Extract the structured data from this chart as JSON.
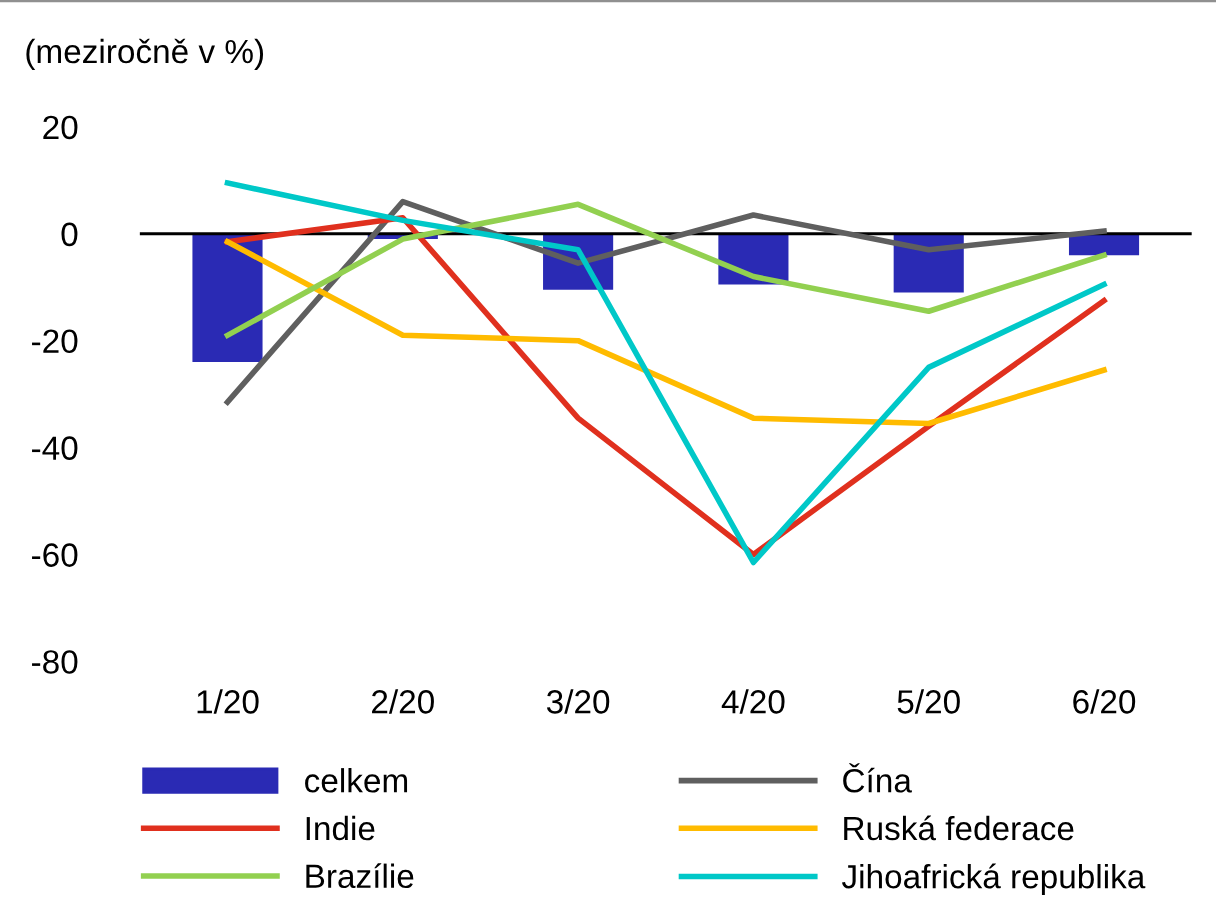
{
  "chart_data": {
    "type": "bar",
    "ylabel": "(meziročně v %)",
    "categories": [
      "1/20",
      "2/20",
      "3/20",
      "4/20",
      "5/20",
      "6/20"
    ],
    "series": [
      {
        "name": "celkem",
        "color": "#2a2ab4",
        "values": [
          -24,
          -1,
          -10.5,
          -9.5,
          -11,
          -4
        ]
      },
      {
        "name": "Čína",
        "type": "line",
        "color": "#5f5f5f",
        "values": [
          -31.5,
          6,
          -5.5,
          3.5,
          -3,
          0.5
        ]
      },
      {
        "name": "Indie",
        "type": "line",
        "color": "#e0301e",
        "values": [
          -1.5,
          3,
          -34.5,
          -60,
          -36,
          -12.5
        ]
      },
      {
        "name": "Ruská federace",
        "type": "line",
        "color": "#ffbb00",
        "values": [
          -1.5,
          -19,
          -20,
          -34.5,
          -35.5,
          -25.5
        ]
      },
      {
        "name": "Brazílie",
        "type": "line",
        "color": "#92d050",
        "values": [
          -19,
          -1,
          5.5,
          -8,
          -14.5,
          -4
        ]
      },
      {
        "name": "Jihoafrická republika",
        "type": "line",
        "color": "#00c8c8",
        "values": [
          9.5,
          2.5,
          -3,
          -61.5,
          -25,
          -9.5
        ]
      }
    ],
    "ylim": [
      -80,
      20
    ],
    "yticks": [
      -80,
      -60,
      -40,
      -20,
      0,
      20
    ],
    "grid": false,
    "ref_lines": [
      {
        "axis": "y",
        "value": 0,
        "color": "#000000"
      }
    ],
    "legend": "bottom"
  }
}
